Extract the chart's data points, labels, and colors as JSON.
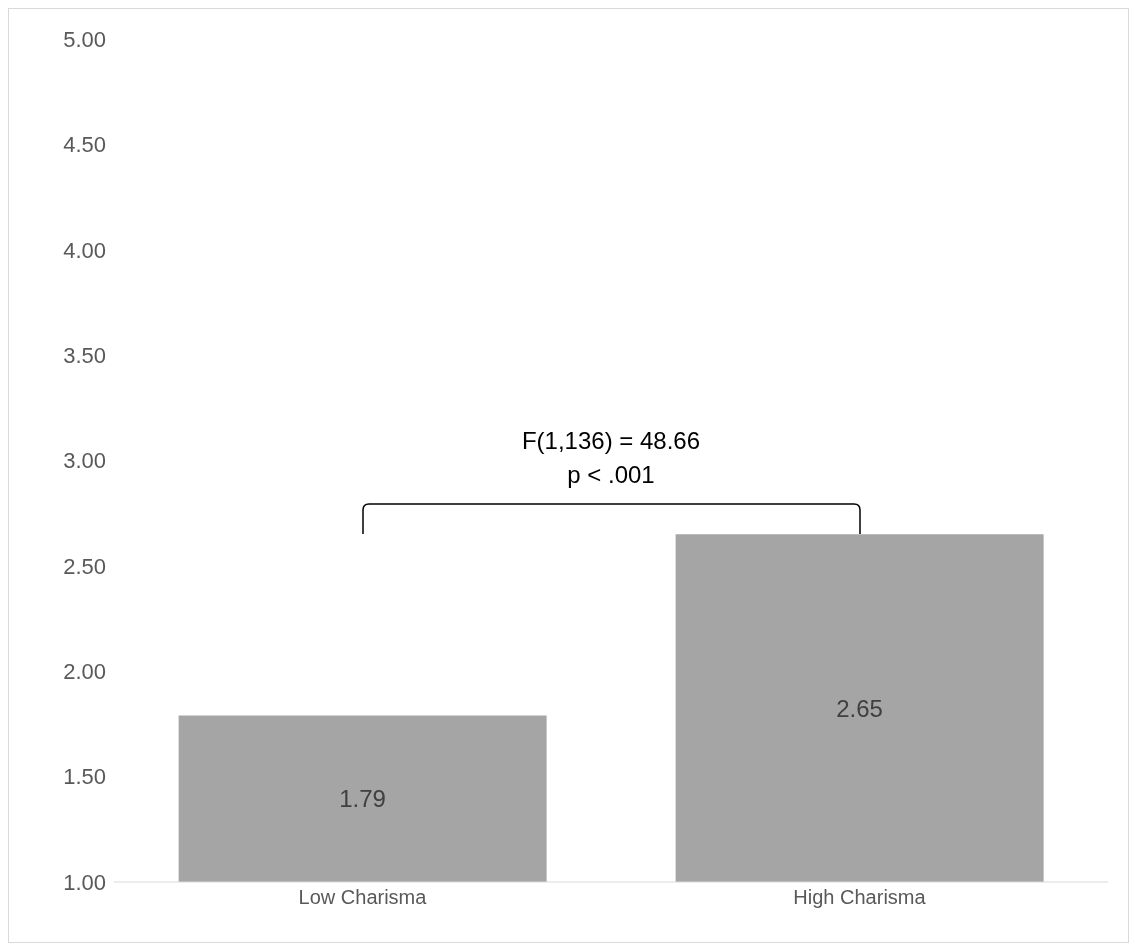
{
  "chart_data": {
    "type": "bar",
    "categories": [
      "Low Charisma",
      "High Charisma"
    ],
    "values": [
      1.79,
      2.65
    ],
    "color": "#a5a5a5",
    "data_labels": true,
    "ylim": [
      1,
      5
    ],
    "yticks": [
      {
        "value": 1,
        "label": "1.00"
      },
      {
        "value": 1.5,
        "label": "1.50"
      },
      {
        "value": 2,
        "label": "2.00"
      },
      {
        "value": 2.5,
        "label": "2.50"
      },
      {
        "value": 3,
        "label": "3.00"
      },
      {
        "value": 3.5,
        "label": "3.50"
      },
      {
        "value": 4,
        "label": "4.00"
      },
      {
        "value": 4.5,
        "label": "4.50"
      },
      {
        "value": 5,
        "label": "5.00"
      }
    ],
    "annotations": [
      "F(1,136) = 48.66",
      "p < .001"
    ]
  }
}
